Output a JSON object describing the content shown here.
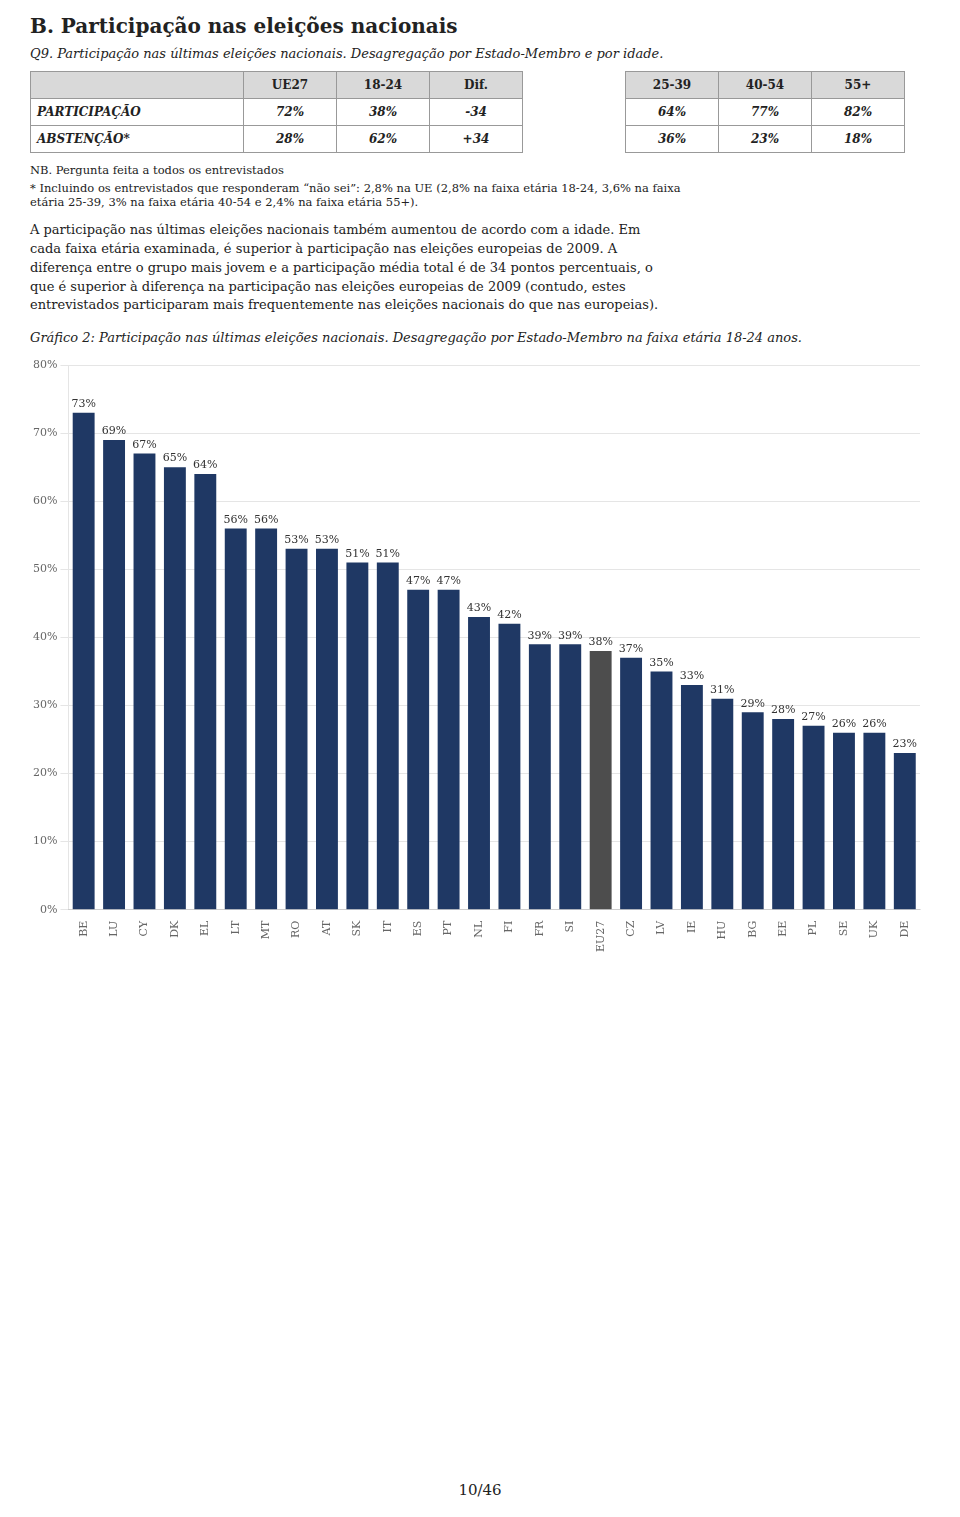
{
  "title": "B. Participação nas eleições nacionais",
  "subtitle": "Q9. Participação nas últimas eleições nacionais. Desagregação por Estado-Membro e por idade.",
  "table": {
    "header": [
      null,
      "UE27",
      "18-24",
      "Dif.",
      "25-39",
      "40-54",
      "55+"
    ],
    "rows": [
      [
        "PARTICIPAÇÃO",
        "72%",
        "38%",
        "-34",
        "64%",
        "77%",
        "82%"
      ],
      [
        "ABSTENÇÃO*",
        "28%",
        "62%",
        "+34",
        "36%",
        "23%",
        "18%"
      ]
    ]
  },
  "notes": [
    "NB. Pergunta feita a todos os entrevistados",
    "* Incluindo os entrevistados que responderam “não sei”: 2,8% na UE (2,8% na faixa etária 18-24, 3,6% na faixa\netária 25-39, 3% na faixa etária 40-54 e 2,4% na faixa etária 55+)."
  ],
  "body_text": [
    "A participação nas últimas eleições nacionais também aumentou de acordo com a idade. Em",
    "cada faixa etária examinada, é superior à participação nas eleições europeias de 2009. A",
    "diferença entre o grupo mais jovem e a participação média total é de 34 pontos percentuais, o",
    "que é superior à diferença na participação nas eleições europeias de 2009 (contudo, estes",
    "entrevistados participaram mais frequentemente nas eleições nacionais do que nas europeias)."
  ],
  "page_number": "10/46",
  "chart_data": {
    "type": "bar",
    "title": "Gráfico 2: Participação nas últimas eleições nacionais. Desagregação por Estado-Membro na faixa etária 18-24 anos.",
    "categories": [
      "BE",
      "LU",
      "CY",
      "DK",
      "EL",
      "LT",
      "MT",
      "RO",
      "AT",
      "SK",
      "IT",
      "ES",
      "PT",
      "NL",
      "FI",
      "FR",
      "SI",
      "EU27",
      "CZ",
      "LV",
      "IE",
      "HU",
      "BG",
      "EE",
      "PL",
      "SE",
      "UK",
      "DE"
    ],
    "values": [
      73,
      69,
      67,
      65,
      64,
      56,
      56,
      53,
      53,
      51,
      51,
      47,
      47,
      43,
      42,
      39,
      39,
      38,
      37,
      35,
      33,
      31,
      29,
      28,
      27,
      26,
      26,
      23
    ],
    "value_labels": [
      "73%",
      "69%",
      "67%",
      "65%",
      "64%",
      "56%",
      "56%",
      "53%",
      "53%",
      "51%",
      "51%",
      "47%",
      "47%",
      "43%",
      "42%",
      "39%",
      "39%",
      "38%",
      "37%",
      "35%",
      "33%",
      "31%",
      "29%",
      "28%",
      "27%",
      "26%",
      "26%",
      "23%"
    ],
    "colors": [
      "#1f3864",
      "#1f3864",
      "#1f3864",
      "#1f3864",
      "#1f3864",
      "#1f3864",
      "#1f3864",
      "#1f3864",
      "#1f3864",
      "#1f3864",
      "#1f3864",
      "#1f3864",
      "#1f3864",
      "#1f3864",
      "#1f3864",
      "#1f3864",
      "#1f3864",
      "#4d4d4d",
      "#1f3864",
      "#1f3864",
      "#1f3864",
      "#1f3864",
      "#1f3864",
      "#1f3864",
      "#1f3864",
      "#1f3864",
      "#1f3864",
      "#1f3864"
    ],
    "ylim": [
      0,
      80
    ],
    "yticks": [
      {
        "value": 0,
        "label": "0%"
      },
      {
        "value": 10,
        "label": "10%"
      },
      {
        "value": 20,
        "label": "20%"
      },
      {
        "value": 30,
        "label": "30%"
      },
      {
        "value": 40,
        "label": "40%"
      },
      {
        "value": 50,
        "label": "50%"
      },
      {
        "value": 60,
        "label": "60%"
      },
      {
        "value": 70,
        "label": "70%"
      },
      {
        "value": 80,
        "label": "80%"
      }
    ],
    "grid": true,
    "data_labels": true
  }
}
